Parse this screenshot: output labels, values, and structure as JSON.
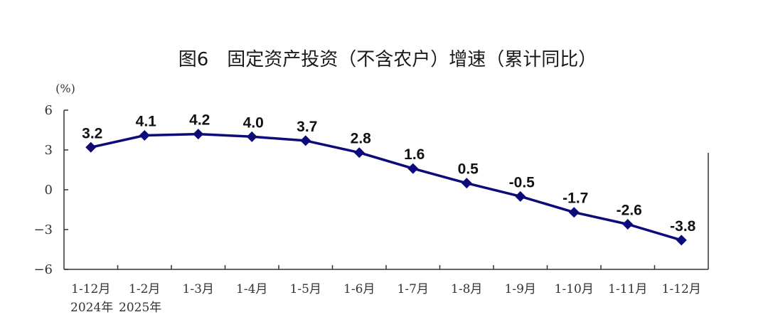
{
  "chart_data": {
    "type": "line",
    "title": "图6　固定资产投资（不含农户）增速（累计同比）",
    "yunit": "(%)",
    "categories": [
      "1-12月",
      "1-2月",
      "1-3月",
      "1-4月",
      "1-5月",
      "1-6月",
      "1-7月",
      "1-8月",
      "1-9月",
      "1-10月",
      "1-11月",
      "1-12月"
    ],
    "year_labels": [
      "2024年",
      "2025年"
    ],
    "series": [
      {
        "values": [
          3.2,
          4.1,
          4.2,
          4.0,
          3.7,
          2.8,
          1.6,
          0.5,
          -0.5,
          -1.7,
          -2.6,
          -3.8
        ],
        "color": "#0d0a7a"
      }
    ],
    "value_labels": [
      "3.2",
      "4.1",
      "4.2",
      "4.0",
      "3.7",
      "2.8",
      "1.6",
      "0.5",
      "-0.5",
      "-1.7",
      "-2.6",
      "-3.8"
    ],
    "yticks": [
      6,
      3,
      0,
      -3,
      -6
    ],
    "ytick_labels": [
      "6",
      "3",
      "0",
      "−3",
      "−6"
    ],
    "ylim": [
      -6,
      6
    ],
    "grid": false,
    "marker": "diamond",
    "axis_color": "#333333"
  }
}
